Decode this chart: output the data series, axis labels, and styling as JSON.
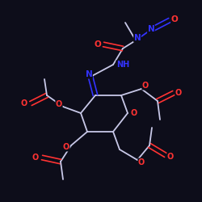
{
  "bg_color": "#0d0d1a",
  "bond_color": "#c8c8e8",
  "atom_colors": {
    "O": "#ff3333",
    "N": "#3333ff",
    "C": "#c8c8e8"
  },
  "figsize": [
    2.5,
    2.5
  ],
  "dpi": 100
}
